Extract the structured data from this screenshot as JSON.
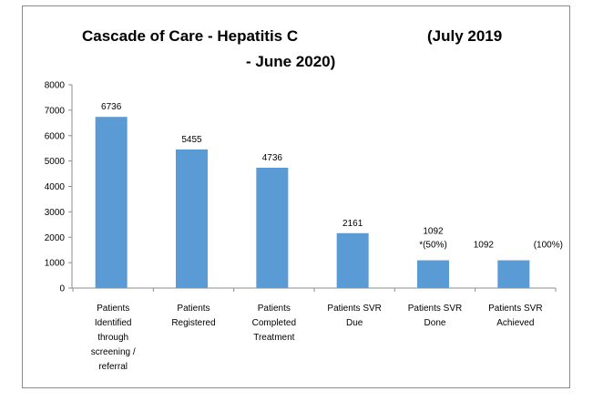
{
  "chart_data": {
    "type": "bar",
    "title": "Cascade of Care - Hepatitis C",
    "subtitle_right_1": "(July 2019",
    "subtitle_right_2": "- June 2020)",
    "categories": [
      [
        "Patients",
        "Identified",
        "through",
        "screening /",
        "referral"
      ],
      [
        "Patients",
        "Registered"
      ],
      [
        "Patients",
        "Completed",
        "Treatment"
      ],
      [
        "Patients SVR",
        "Due"
      ],
      [
        "Patients SVR",
        "Done"
      ],
      [
        "Patients SVR",
        "Achieved"
      ]
    ],
    "values": [
      6736,
      5455,
      4736,
      2161,
      1092,
      1092
    ],
    "data_labels": [
      [
        "6736"
      ],
      [
        "5455"
      ],
      [
        "4736"
      ],
      [
        "2161"
      ],
      [
        "1092",
        "*(50%)"
      ],
      [
        "1092",
        "(100%)"
      ]
    ],
    "ylim": [
      0,
      8000
    ],
    "yticks": [
      0,
      1000,
      2000,
      3000,
      4000,
      5000,
      6000,
      7000,
      8000
    ],
    "bar_color": "#5b9bd5",
    "grid": false,
    "legend": "none"
  }
}
